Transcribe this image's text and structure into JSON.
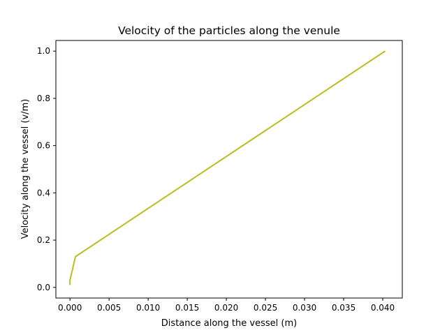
{
  "chart_data": {
    "type": "line",
    "title": "Velocity of the particles along the venule",
    "xlabel": "Distance along the vessel (m)",
    "ylabel": "Velocity along the vessel (v/m)",
    "xlim": [
      -0.0018,
      0.0425
    ],
    "ylim": [
      -0.045,
      1.045
    ],
    "xticks": [
      0.0,
      0.005,
      0.01,
      0.015,
      0.02,
      0.025,
      0.03,
      0.035,
      0.04
    ],
    "xtick_labels": [
      "0.000",
      "0.005",
      "0.010",
      "0.015",
      "0.020",
      "0.025",
      "0.030",
      "0.035",
      "0.040"
    ],
    "yticks": [
      0.0,
      0.2,
      0.4,
      0.6,
      0.8,
      1.0
    ],
    "ytick_labels": [
      "0.0",
      "0.2",
      "0.4",
      "0.6",
      "0.8",
      "1.0"
    ],
    "grid": false,
    "series": [
      {
        "color": "#bcbd22",
        "x": [
          0.0,
          0.0,
          0.0007,
          0.0403
        ],
        "y": [
          0.01,
          0.03,
          0.13,
          1.0
        ]
      }
    ]
  }
}
